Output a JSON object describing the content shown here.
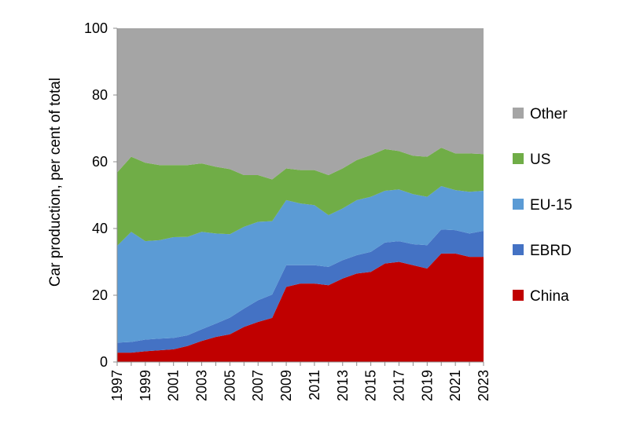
{
  "chart_data": {
    "type": "area",
    "stacked": true,
    "title": "",
    "xlabel": "",
    "ylabel": "Car production, per cent of total",
    "ylim": [
      0,
      100
    ],
    "y_ticks": [
      0,
      20,
      40,
      60,
      80,
      100
    ],
    "x": [
      1997,
      1998,
      1999,
      2000,
      2001,
      2002,
      2003,
      2004,
      2005,
      2006,
      2007,
      2008,
      2009,
      2010,
      2011,
      2012,
      2013,
      2014,
      2015,
      2016,
      2017,
      2018,
      2019,
      2020,
      2021,
      2022,
      2023
    ],
    "x_tick_labels": [
      "1997",
      "1999",
      "2001",
      "2003",
      "2005",
      "2007",
      "2009",
      "2011",
      "2013",
      "2015",
      "2017",
      "2019",
      "2021",
      "2023"
    ],
    "legend_position": "right",
    "series": [
      {
        "name": "China",
        "color": "#c00000",
        "values": [
          2.8,
          2.8,
          3.2,
          3.5,
          3.8,
          4.8,
          6.3,
          7.5,
          8.3,
          10.5,
          12.0,
          13.2,
          22.5,
          23.5,
          23.5,
          23.0,
          25.0,
          26.5,
          27.0,
          29.5,
          30.0,
          29.0,
          28.0,
          32.5,
          32.5,
          31.5,
          31.5
        ]
      },
      {
        "name": "EBRD",
        "color": "#4472c4",
        "values": [
          3.0,
          3.2,
          3.5,
          3.5,
          3.4,
          3.2,
          3.5,
          4.0,
          5.0,
          5.5,
          6.5,
          7.0,
          6.5,
          5.5,
          5.5,
          5.5,
          5.5,
          5.5,
          6.0,
          6.3,
          6.2,
          6.3,
          7.0,
          7.2,
          7.0,
          7.0,
          7.8
        ]
      },
      {
        "name": "EU-15",
        "color": "#5b9bd5",
        "values": [
          29.0,
          33.0,
          29.5,
          29.5,
          30.2,
          29.5,
          29.2,
          27.0,
          25.0,
          24.5,
          23.5,
          22.0,
          19.5,
          18.5,
          18.0,
          15.5,
          15.5,
          16.5,
          16.5,
          15.5,
          15.5,
          15.0,
          14.5,
          13.0,
          12.0,
          12.5,
          12.0
        ]
      },
      {
        "name": "US",
        "color": "#70ad47",
        "values": [
          22.0,
          22.5,
          23.5,
          22.5,
          21.6,
          21.5,
          20.5,
          20.0,
          19.5,
          15.5,
          14.0,
          12.5,
          9.5,
          10.0,
          10.5,
          12.0,
          12.0,
          12.0,
          12.5,
          12.5,
          11.5,
          11.5,
          12.0,
          11.5,
          11.0,
          11.5,
          11.0
        ]
      },
      {
        "name": "Other",
        "color": "#a5a5a5",
        "values": [
          43.2,
          38.5,
          40.3,
          41.0,
          41.0,
          41.0,
          40.5,
          41.5,
          42.2,
          44.0,
          44.0,
          45.3,
          42.0,
          42.5,
          42.5,
          44.0,
          42.0,
          39.5,
          38.0,
          36.2,
          36.8,
          38.2,
          38.5,
          35.8,
          37.5,
          37.5,
          37.7
        ]
      }
    ],
    "legend": [
      "Other",
      "US",
      "EU-15",
      "EBRD",
      "China"
    ]
  }
}
